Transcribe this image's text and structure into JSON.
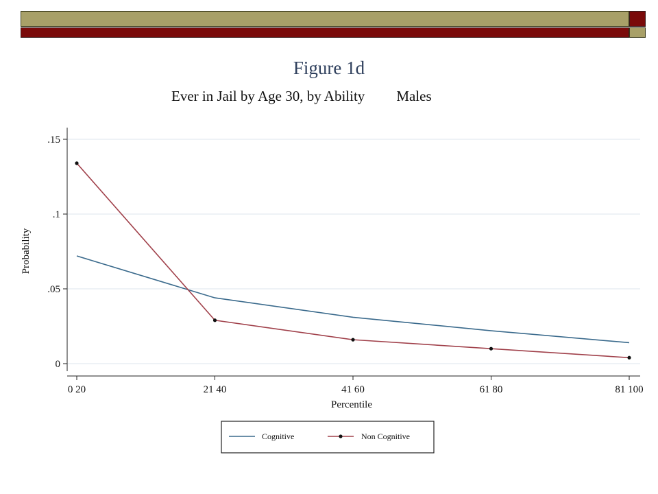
{
  "slide": {
    "title": "Figure 1d",
    "subtitle": "Ever in Jail by Age 30, by Ability",
    "group": "Males"
  },
  "colors": {
    "banner_olive": "#a8a068",
    "banner_maroon": "#7a0a0a",
    "title": "#2e3f5c",
    "cognitive": "#3a6a8c",
    "non_cognitive": "#a0404a",
    "gridline": "#dde6ec"
  },
  "chart_data": {
    "type": "line",
    "title": "",
    "xlabel": "Percentile",
    "ylabel": "Probability",
    "ylim": [
      0,
      0.15
    ],
    "yticks": [
      0,
      0.05,
      0.1,
      0.15
    ],
    "ytick_labels": [
      "0",
      ".05",
      ".1",
      ".15"
    ],
    "categories": [
      "0 20",
      "21 40",
      "41 60",
      "61 80",
      "81 100"
    ],
    "grid": true,
    "legend": "bottom-center",
    "series": [
      {
        "name": "Cognitive",
        "values": [
          0.072,
          0.044,
          0.031,
          0.022,
          0.014
        ],
        "markers": false
      },
      {
        "name": "Non Cognitive",
        "values": [
          0.134,
          0.029,
          0.016,
          0.01,
          0.004
        ],
        "markers": true
      }
    ]
  }
}
